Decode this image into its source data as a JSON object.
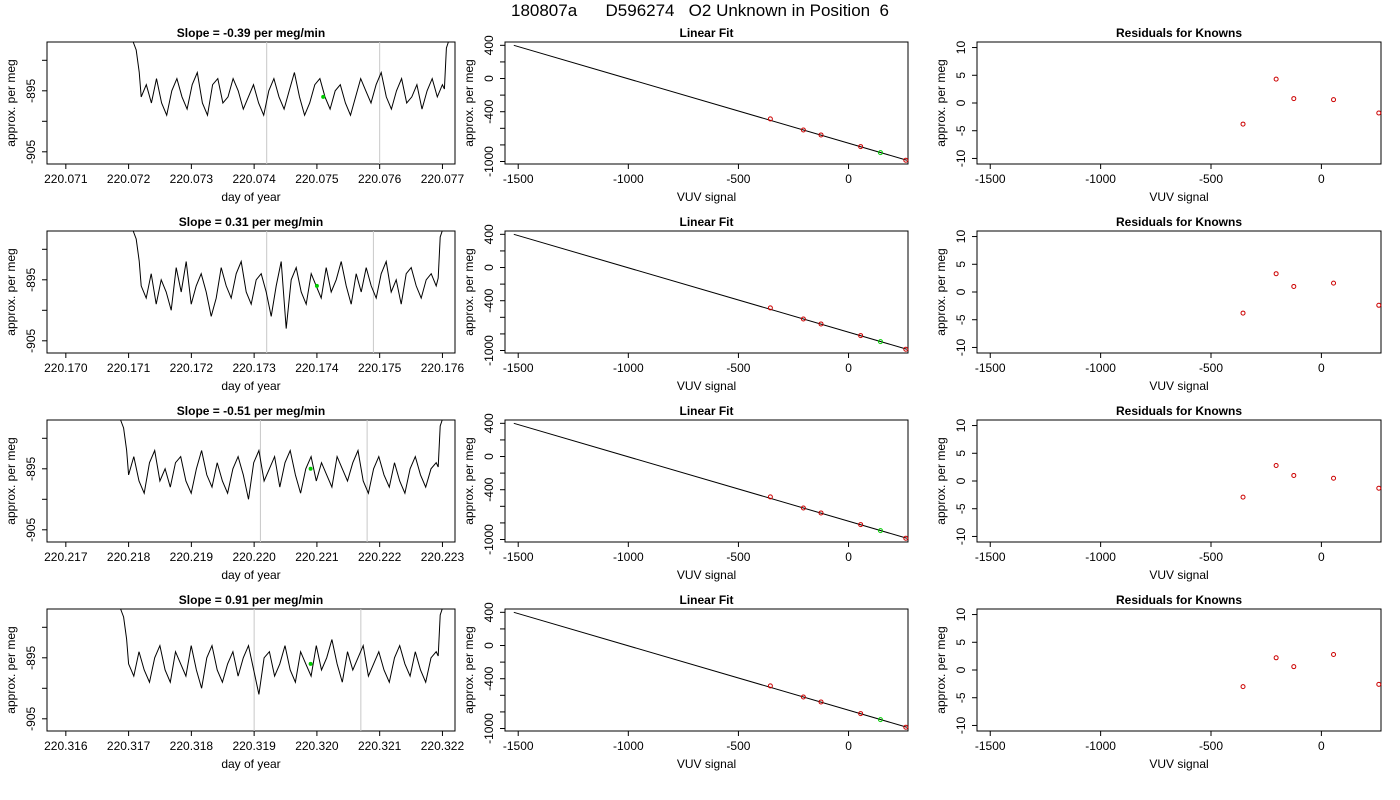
{
  "page_title": "180807a      D596274   O2 Unknown in Position  6",
  "colors": {
    "trace": "#000000",
    "unknown_point": "#00cc00",
    "known_point": "#cc0000",
    "gate_line": "#c8c8c8",
    "axis": "#000000"
  },
  "chart_data": [
    {
      "panel": "row1-timeseries",
      "type": "line",
      "title": "Slope =  -0.39  per meg/min",
      "xlabel": "day of year",
      "ylabel": "approx. per meg",
      "xlim": [
        220.0707,
        220.0772
      ],
      "ylim": [
        -907,
        -887
      ],
      "xticks": [
        "220.071",
        "220.072",
        "220.073",
        "220.074",
        "220.075",
        "220.076",
        "220.077"
      ],
      "yticks": [
        "-905",
        "-895"
      ],
      "gates": [
        220.0742,
        220.076
      ],
      "trace_start": 220.0722,
      "trace_end": 220.077,
      "unknown_point": {
        "x": 220.0751,
        "y": -896
      },
      "series": [
        {
          "values": [
            -896,
            -894,
            -897,
            -893,
            -897,
            -899,
            -895,
            -893,
            -896,
            -898,
            -894,
            -892,
            -897,
            -899,
            -894,
            -893,
            -897,
            -896,
            -893,
            -895,
            -898,
            -896,
            -894,
            -897,
            -899,
            -895,
            -893,
            -896,
            -898,
            -895,
            -892,
            -896,
            -899,
            -897,
            -894,
            -893,
            -896,
            -898,
            -895,
            -894,
            -897,
            -899,
            -896,
            -893,
            -895,
            -897,
            -894,
            -892,
            -896,
            -898,
            -895,
            -893,
            -897,
            -896,
            -894,
            -898,
            -895,
            -893,
            -896,
            -894
          ]
        }
      ]
    },
    {
      "panel": "row1-linear-fit",
      "type": "scatter",
      "title": "Linear Fit",
      "xlabel": "VUV signal",
      "ylabel": "approx. per meg",
      "xlim": [
        -1560,
        270
      ],
      "ylim": [
        -1030,
        440
      ],
      "xticks": [
        "-1500",
        "-1000",
        "-500",
        "0"
      ],
      "yticks": [
        "400",
        "0",
        "-400",
        "-1000"
      ],
      "fit_line": [
        [
          -1520,
          400
        ],
        [
          265,
          -985
        ]
      ],
      "knowns": [
        [
          -355,
          -487
        ],
        [
          -205,
          -620
        ],
        [
          -125,
          -680
        ],
        [
          55,
          -820
        ],
        [
          260,
          -985
        ]
      ],
      "unknown": [
        [
          145,
          -893
        ]
      ]
    },
    {
      "panel": "row1-residuals",
      "type": "scatter",
      "title": "Residuals for Knowns",
      "xlabel": "VUV signal",
      "ylabel": "approx. per meg",
      "xlim": [
        -1560,
        270
      ],
      "ylim": [
        -11,
        11
      ],
      "xticks": [
        "-1500",
        "-1000",
        "-500",
        "0"
      ],
      "yticks": [
        "10",
        "5",
        "0",
        "-5",
        "-10"
      ],
      "points": [
        [
          -355,
          -3.8
        ],
        [
          -205,
          4.3
        ],
        [
          -125,
          0.8
        ],
        [
          55,
          0.6
        ],
        [
          260,
          -1.8
        ]
      ]
    },
    {
      "panel": "row2-timeseries",
      "type": "line",
      "title": "Slope =  0.31  per meg/min",
      "xlabel": "day of year",
      "ylabel": "approx. per meg",
      "xlim": [
        220.1697,
        220.1762
      ],
      "ylim": [
        -907,
        -887
      ],
      "xticks": [
        "220.170",
        "220.171",
        "220.172",
        "220.173",
        "220.174",
        "220.175",
        "220.176"
      ],
      "yticks": [
        "-905",
        "-895"
      ],
      "gates": [
        220.1732,
        220.1749
      ],
      "trace_start": 220.1712,
      "trace_end": 220.1759,
      "unknown_point": {
        "x": 220.174,
        "y": -896
      },
      "series": [
        {
          "values": [
            -896,
            -898,
            -894,
            -899,
            -895,
            -897,
            -900,
            -893,
            -897,
            -892,
            -899,
            -896,
            -894,
            -897,
            -901,
            -898,
            -893,
            -896,
            -898,
            -894,
            -892,
            -897,
            -899,
            -895,
            -894,
            -897,
            -901,
            -896,
            -892,
            -903,
            -895,
            -893,
            -897,
            -899,
            -894,
            -896,
            -898,
            -893,
            -897,
            -895,
            -892,
            -896,
            -899,
            -894,
            -897,
            -893,
            -896,
            -898,
            -894,
            -892,
            -897,
            -895,
            -899,
            -894,
            -893,
            -896,
            -898,
            -895,
            -894,
            -896
          ]
        }
      ]
    },
    {
      "panel": "row2-linear-fit",
      "type": "scatter",
      "title": "Linear Fit",
      "xlabel": "VUV signal",
      "ylabel": "approx. per meg",
      "xlim": [
        -1560,
        270
      ],
      "ylim": [
        -1030,
        440
      ],
      "xticks": [
        "-1500",
        "-1000",
        "-500",
        "0"
      ],
      "yticks": [
        "400",
        "0",
        "-400",
        "-1000"
      ],
      "fit_line": [
        [
          -1520,
          400
        ],
        [
          265,
          -985
        ]
      ],
      "knowns": [
        [
          -355,
          -487
        ],
        [
          -205,
          -620
        ],
        [
          -125,
          -680
        ],
        [
          55,
          -820
        ],
        [
          260,
          -985
        ]
      ],
      "unknown": [
        [
          145,
          -893
        ]
      ]
    },
    {
      "panel": "row2-residuals",
      "type": "scatter",
      "title": "Residuals for Knowns",
      "xlabel": "VUV signal",
      "ylabel": "approx. per meg",
      "xlim": [
        -1560,
        270
      ],
      "ylim": [
        -11,
        11
      ],
      "xticks": [
        "-1500",
        "-1000",
        "-500",
        "0"
      ],
      "yticks": [
        "10",
        "5",
        "0",
        "-5",
        "-10"
      ],
      "points": [
        [
          -355,
          -3.8
        ],
        [
          -205,
          3.3
        ],
        [
          -125,
          1.0
        ],
        [
          55,
          1.6
        ],
        [
          260,
          -2.4
        ]
      ]
    },
    {
      "panel": "row3-timeseries",
      "type": "line",
      "title": "Slope =  -0.51  per meg/min",
      "xlabel": "day of year",
      "ylabel": "approx. per meg",
      "xlim": [
        220.2167,
        220.2232
      ],
      "ylim": [
        -907,
        -887
      ],
      "xticks": [
        "220.217",
        "220.218",
        "220.219",
        "220.220",
        "220.221",
        "220.222",
        "220.223"
      ],
      "yticks": [
        "-905",
        "-895"
      ],
      "gates": [
        220.2201,
        220.2218
      ],
      "trace_start": 220.218,
      "trace_end": 220.2229,
      "unknown_point": {
        "x": 220.2209,
        "y": -895
      },
      "series": [
        {
          "values": [
            -896,
            -893,
            -897,
            -899,
            -894,
            -892,
            -897,
            -895,
            -898,
            -894,
            -893,
            -897,
            -899,
            -895,
            -892,
            -896,
            -898,
            -894,
            -897,
            -899,
            -895,
            -893,
            -896,
            -900,
            -894,
            -892,
            -897,
            -895,
            -893,
            -898,
            -894,
            -892,
            -896,
            -899,
            -895,
            -893,
            -897,
            -894,
            -896,
            -898,
            -893,
            -895,
            -897,
            -894,
            -892,
            -897,
            -899,
            -895,
            -893,
            -896,
            -898,
            -894,
            -897,
            -899,
            -895,
            -893,
            -896,
            -898,
            -895,
            -894
          ]
        }
      ]
    },
    {
      "panel": "row3-linear-fit",
      "type": "scatter",
      "title": "Linear Fit",
      "xlabel": "VUV signal",
      "ylabel": "approx. per meg",
      "xlim": [
        -1560,
        270
      ],
      "ylim": [
        -1030,
        440
      ],
      "xticks": [
        "-1500",
        "-1000",
        "-500",
        "0"
      ],
      "yticks": [
        "400",
        "0",
        "-400",
        "-1000"
      ],
      "fit_line": [
        [
          -1520,
          400
        ],
        [
          265,
          -985
        ]
      ],
      "knowns": [
        [
          -355,
          -487
        ],
        [
          -205,
          -620
        ],
        [
          -125,
          -680
        ],
        [
          55,
          -820
        ],
        [
          260,
          -985
        ]
      ],
      "unknown": [
        [
          145,
          -893
        ]
      ]
    },
    {
      "panel": "row3-residuals",
      "type": "scatter",
      "title": "Residuals for Knowns",
      "xlabel": "VUV signal",
      "ylabel": "approx. per meg",
      "xlim": [
        -1560,
        270
      ],
      "ylim": [
        -11,
        11
      ],
      "xticks": [
        "-1500",
        "-1000",
        "-500",
        "0"
      ],
      "yticks": [
        "10",
        "5",
        "0",
        "-5",
        "-10"
      ],
      "points": [
        [
          -355,
          -2.9
        ],
        [
          -205,
          2.8
        ],
        [
          -125,
          1.0
        ],
        [
          55,
          0.5
        ],
        [
          260,
          -1.3
        ]
      ]
    },
    {
      "panel": "row4-timeseries",
      "type": "line",
      "title": "Slope =  0.91  per meg/min",
      "xlabel": "day of year",
      "ylabel": "approx. per meg",
      "xlim": [
        220.3157,
        220.3222
      ],
      "ylim": [
        -907,
        -887
      ],
      "xticks": [
        "220.316",
        "220.317",
        "220.318",
        "220.319",
        "220.320",
        "220.321",
        "220.322"
      ],
      "yticks": [
        "-905",
        "-895"
      ],
      "gates": [
        220.319,
        220.3207
      ],
      "trace_start": 220.317,
      "trace_end": 220.3219,
      "unknown_point": {
        "x": 220.3199,
        "y": -896
      },
      "series": [
        {
          "values": [
            -896,
            -898,
            -894,
            -897,
            -899,
            -895,
            -893,
            -897,
            -899,
            -894,
            -896,
            -898,
            -893,
            -897,
            -900,
            -895,
            -893,
            -897,
            -899,
            -896,
            -894,
            -898,
            -895,
            -893,
            -897,
            -901,
            -895,
            -894,
            -898,
            -896,
            -893,
            -897,
            -899,
            -894,
            -896,
            -898,
            -893,
            -897,
            -895,
            -892,
            -896,
            -899,
            -894,
            -897,
            -895,
            -893,
            -898,
            -896,
            -894,
            -897,
            -899,
            -895,
            -893,
            -896,
            -898,
            -894,
            -897,
            -899,
            -895,
            -894
          ]
        }
      ]
    },
    {
      "panel": "row4-linear-fit",
      "type": "scatter",
      "title": "Linear Fit",
      "xlabel": "VUV signal",
      "ylabel": "approx. per meg",
      "xlim": [
        -1560,
        270
      ],
      "ylim": [
        -1030,
        440
      ],
      "xticks": [
        "-1500",
        "-1000",
        "-500",
        "0"
      ],
      "yticks": [
        "400",
        "0",
        "-400",
        "-1000"
      ],
      "fit_line": [
        [
          -1520,
          400
        ],
        [
          265,
          -985
        ]
      ],
      "knowns": [
        [
          -355,
          -487
        ],
        [
          -205,
          -620
        ],
        [
          -125,
          -680
        ],
        [
          55,
          -820
        ],
        [
          260,
          -985
        ]
      ],
      "unknown": [
        [
          145,
          -893
        ]
      ]
    },
    {
      "panel": "row4-residuals",
      "type": "scatter",
      "title": "Residuals for Knowns",
      "xlabel": "VUV signal",
      "ylabel": "approx. per meg",
      "xlim": [
        -1560,
        270
      ],
      "ylim": [
        -11,
        11
      ],
      "xticks": [
        "-1500",
        "-1000",
        "-500",
        "0"
      ],
      "yticks": [
        "10",
        "5",
        "0",
        "-5",
        "-10"
      ],
      "points": [
        [
          -355,
          -3.0
        ],
        [
          -205,
          2.2
        ],
        [
          -125,
          0.6
        ],
        [
          55,
          2.8
        ],
        [
          260,
          -2.6
        ]
      ]
    }
  ]
}
